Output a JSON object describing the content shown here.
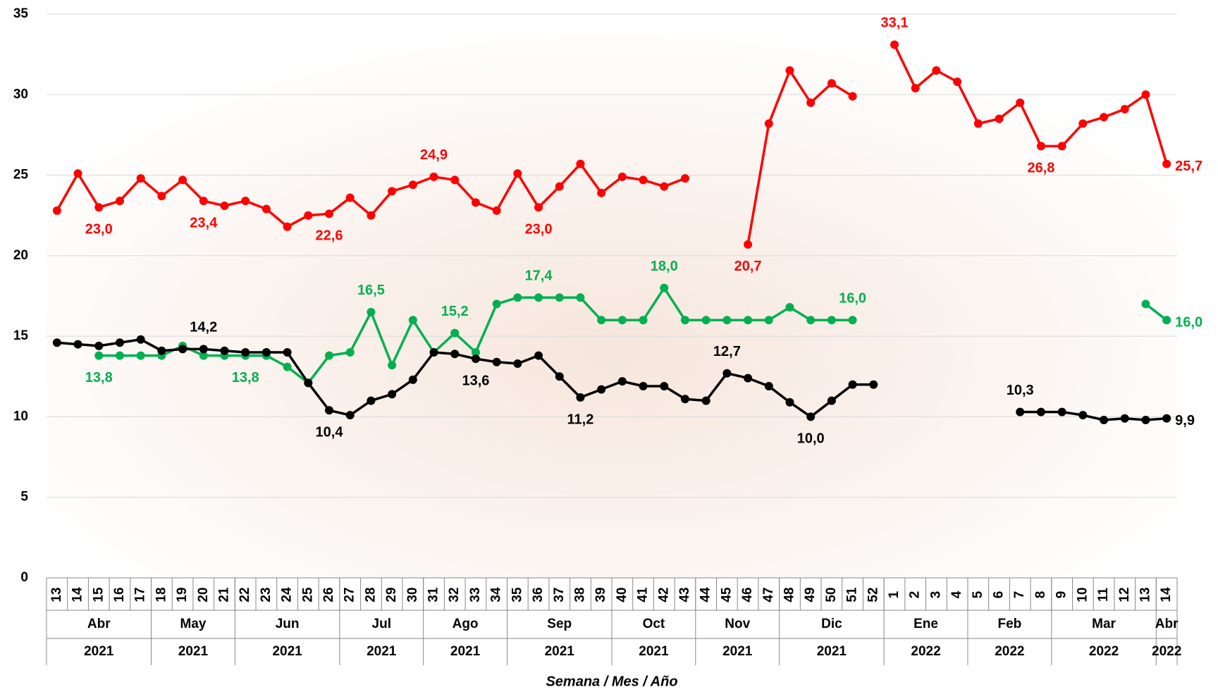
{
  "chart_data": {
    "type": "line",
    "x_label": "Semana / Mes / Año",
    "categories": [
      "13",
      "14",
      "15",
      "16",
      "17",
      "18",
      "19",
      "20",
      "21",
      "22",
      "23",
      "24",
      "25",
      "26",
      "27",
      "28",
      "29",
      "30",
      "31",
      "32",
      "33",
      "34",
      "35",
      "36",
      "37",
      "38",
      "39",
      "40",
      "41",
      "42",
      "43",
      "44",
      "45",
      "46",
      "47",
      "48",
      "49",
      "50",
      "51",
      "52",
      "1",
      "2",
      "3",
      "4",
      "5",
      "6",
      "7",
      "8",
      "9",
      "10",
      "11",
      "12",
      "13",
      "14"
    ],
    "groups": [
      {
        "month": "Abr",
        "year": "2021",
        "span": 5
      },
      {
        "month": "May",
        "year": "2021",
        "span": 4
      },
      {
        "month": "Jun",
        "year": "2021",
        "span": 5
      },
      {
        "month": "Jul",
        "year": "2021",
        "span": 4
      },
      {
        "month": "Ago",
        "year": "2021",
        "span": 4
      },
      {
        "month": "Sep",
        "year": "2021",
        "span": 5
      },
      {
        "month": "Oct",
        "year": "2021",
        "span": 4
      },
      {
        "month": "Nov",
        "year": "2021",
        "span": 4
      },
      {
        "month": "Dic",
        "year": "2021",
        "span": 5
      },
      {
        "month": "Ene",
        "year": "2022",
        "span": 4
      },
      {
        "month": "Feb",
        "year": "2022",
        "span": 4
      },
      {
        "month": "Mar",
        "year": "2022",
        "span": 5
      },
      {
        "month": "Abr",
        "year": "2022",
        "span": 1
      }
    ],
    "ylim": [
      0,
      35
    ],
    "yticks": [
      0,
      5,
      10,
      15,
      20,
      25,
      30,
      35
    ],
    "grid": true,
    "series": [
      {
        "color": "#ff0000",
        "values": [
          22.8,
          25.1,
          23.0,
          23.4,
          24.8,
          23.7,
          24.7,
          23.4,
          23.1,
          23.4,
          22.9,
          21.8,
          22.5,
          22.6,
          23.6,
          22.5,
          24.0,
          24.4,
          24.9,
          24.7,
          23.3,
          22.8,
          25.1,
          23.0,
          24.3,
          25.7,
          23.9,
          24.9,
          24.7,
          24.3,
          24.8,
          null,
          null,
          20.7,
          28.2,
          31.5,
          29.5,
          30.7,
          29.9,
          null,
          33.1,
          30.4,
          31.5,
          30.8,
          28.2,
          28.5,
          29.5,
          26.8,
          26.8,
          28.2,
          28.6,
          29.1,
          30.0,
          25.7
        ],
        "value_labels": [
          null,
          null,
          "23,0",
          null,
          null,
          null,
          null,
          "23,4",
          null,
          null,
          null,
          null,
          null,
          "22,6",
          null,
          null,
          null,
          null,
          "24,9",
          null,
          null,
          null,
          null,
          "23,0",
          null,
          null,
          null,
          null,
          null,
          null,
          null,
          null,
          null,
          "20,7",
          null,
          null,
          null,
          null,
          null,
          null,
          "33,1",
          null,
          null,
          null,
          null,
          null,
          null,
          "26,8",
          null,
          null,
          null,
          null,
          null,
          "25,7"
        ]
      },
      {
        "color": "#00b050",
        "values": [
          null,
          null,
          13.8,
          13.8,
          13.8,
          13.8,
          14.4,
          13.8,
          13.8,
          13.8,
          13.8,
          13.1,
          12.1,
          13.8,
          14.0,
          16.5,
          13.2,
          16.0,
          14.0,
          15.2,
          14.0,
          17.0,
          17.4,
          17.4,
          17.4,
          17.4,
          16.0,
          16.0,
          16.0,
          18.0,
          16.0,
          16.0,
          16.0,
          16.0,
          16.0,
          16.8,
          16.0,
          16.0,
          16.0,
          null,
          null,
          null,
          null,
          null,
          null,
          null,
          null,
          null,
          null,
          null,
          null,
          null,
          17.0,
          16.0
        ],
        "value_labels": [
          null,
          null,
          "13,8",
          null,
          null,
          null,
          null,
          null,
          null,
          "13,8",
          null,
          null,
          null,
          null,
          null,
          "16,5",
          null,
          null,
          null,
          "15,2",
          null,
          null,
          null,
          "17,4",
          null,
          null,
          null,
          null,
          null,
          "18,0",
          null,
          null,
          null,
          null,
          null,
          null,
          null,
          null,
          "16,0",
          null,
          null,
          null,
          null,
          null,
          null,
          null,
          null,
          null,
          null,
          null,
          null,
          null,
          null,
          "16,0"
        ]
      },
      {
        "color": "#000000",
        "values": [
          14.6,
          14.5,
          14.4,
          14.6,
          14.8,
          14.1,
          14.2,
          14.2,
          14.1,
          14.0,
          14.0,
          14.0,
          12.1,
          10.4,
          10.1,
          11.0,
          11.4,
          12.3,
          14.0,
          13.9,
          13.6,
          13.4,
          13.3,
          13.8,
          12.5,
          11.2,
          11.7,
          12.2,
          11.9,
          11.9,
          11.1,
          11.0,
          12.7,
          12.4,
          11.9,
          10.9,
          10.0,
          11.0,
          12.0,
          12.0,
          null,
          null,
          null,
          null,
          null,
          null,
          10.3,
          10.3,
          10.3,
          10.1,
          9.8,
          9.9,
          9.8,
          9.9
        ],
        "value_labels": [
          null,
          null,
          null,
          null,
          null,
          null,
          null,
          "14,2",
          null,
          null,
          null,
          null,
          null,
          "10,4",
          null,
          null,
          null,
          null,
          null,
          null,
          "13,6",
          null,
          null,
          null,
          null,
          "11,2",
          null,
          null,
          null,
          null,
          null,
          null,
          "12,7",
          null,
          null,
          null,
          "10,0",
          null,
          null,
          null,
          null,
          null,
          null,
          null,
          null,
          null,
          "10,3",
          null,
          null,
          null,
          null,
          null,
          null,
          "9,9"
        ]
      }
    ]
  }
}
